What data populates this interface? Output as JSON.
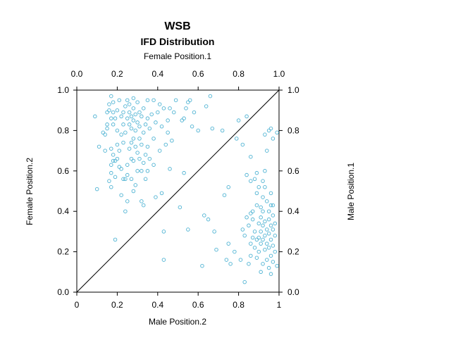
{
  "chart_data": {
    "type": "scatter",
    "title": "WSB",
    "subtitle": "IFD Distribution",
    "xlabel_top": "Female Position.1",
    "xlabel_bottom": "Male Position.2",
    "ylabel_left": "Female Position.2",
    "ylabel_right": "Male Position.1",
    "top_ticks": [
      "0.0",
      "0.2",
      "0.4",
      "0.6",
      "0.8",
      "1.0"
    ],
    "bottom_ticks": [
      "0",
      "0.2",
      "0.4",
      "0.6",
      "0.8",
      "1"
    ],
    "left_ticks": [
      "0.0",
      "0.2",
      "0.4",
      "0.6",
      "0.8",
      "1.0"
    ],
    "right_ticks": [
      "0.0",
      "0.2",
      "0.4",
      "0.6",
      "0.8",
      "1.0"
    ],
    "xlim": [
      0,
      1
    ],
    "ylim": [
      0,
      1
    ],
    "grid": false,
    "reference_line": "y = x",
    "point_color": "#4fb3d3",
    "line_color": "#000000",
    "points": [
      [
        0.09,
        0.87
      ],
      [
        0.1,
        0.51
      ],
      [
        0.11,
        0.72
      ],
      [
        0.13,
        0.79
      ],
      [
        0.14,
        0.7
      ],
      [
        0.14,
        0.78
      ],
      [
        0.15,
        0.81
      ],
      [
        0.15,
        0.83
      ],
      [
        0.15,
        0.89
      ],
      [
        0.16,
        0.9
      ],
      [
        0.16,
        0.93
      ],
      [
        0.16,
        0.55
      ],
      [
        0.17,
        0.52
      ],
      [
        0.17,
        0.59
      ],
      [
        0.17,
        0.63
      ],
      [
        0.17,
        0.71
      ],
      [
        0.17,
        0.86
      ],
      [
        0.17,
        0.97
      ],
      [
        0.18,
        0.65
      ],
      [
        0.18,
        0.83
      ],
      [
        0.18,
        0.89
      ],
      [
        0.18,
        0.94
      ],
      [
        0.18,
        0.68
      ],
      [
        0.19,
        0.26
      ],
      [
        0.19,
        0.57
      ],
      [
        0.19,
        0.65
      ],
      [
        0.19,
        0.86
      ],
      [
        0.2,
        0.66
      ],
      [
        0.2,
        0.73
      ],
      [
        0.2,
        0.8
      ],
      [
        0.2,
        0.9
      ],
      [
        0.21,
        0.62
      ],
      [
        0.21,
        0.7
      ],
      [
        0.21,
        0.95
      ],
      [
        0.22,
        0.48
      ],
      [
        0.22,
        0.61
      ],
      [
        0.22,
        0.78
      ],
      [
        0.22,
        0.87
      ],
      [
        0.23,
        0.56
      ],
      [
        0.23,
        0.74
      ],
      [
        0.23,
        0.83
      ],
      [
        0.23,
        0.89
      ],
      [
        0.24,
        0.4
      ],
      [
        0.24,
        0.56
      ],
      [
        0.24,
        0.79
      ],
      [
        0.24,
        0.92
      ],
      [
        0.25,
        0.45
      ],
      [
        0.25,
        0.58
      ],
      [
        0.25,
        0.63
      ],
      [
        0.25,
        0.86
      ],
      [
        0.25,
        0.95
      ],
      [
        0.26,
        0.71
      ],
      [
        0.26,
        0.83
      ],
      [
        0.26,
        0.89
      ],
      [
        0.26,
        0.93
      ],
      [
        0.27,
        0.56
      ],
      [
        0.27,
        0.66
      ],
      [
        0.27,
        0.74
      ],
      [
        0.27,
        0.81
      ],
      [
        0.27,
        0.87
      ],
      [
        0.28,
        0.5
      ],
      [
        0.28,
        0.65
      ],
      [
        0.28,
        0.76
      ],
      [
        0.28,
        0.85
      ],
      [
        0.28,
        0.91
      ],
      [
        0.28,
        0.96
      ],
      [
        0.29,
        0.53
      ],
      [
        0.29,
        0.72
      ],
      [
        0.29,
        0.8
      ],
      [
        0.29,
        0.88
      ],
      [
        0.3,
        0.6
      ],
      [
        0.3,
        0.69
      ],
      [
        0.3,
        0.84
      ],
      [
        0.3,
        0.94
      ],
      [
        0.31,
        0.66
      ],
      [
        0.31,
        0.76
      ],
      [
        0.31,
        0.82
      ],
      [
        0.31,
        0.89
      ],
      [
        0.32,
        0.45
      ],
      [
        0.32,
        0.6
      ],
      [
        0.32,
        0.73
      ],
      [
        0.32,
        0.87
      ],
      [
        0.33,
        0.43
      ],
      [
        0.33,
        0.64
      ],
      [
        0.33,
        0.79
      ],
      [
        0.33,
        0.91
      ],
      [
        0.34,
        0.56
      ],
      [
        0.34,
        0.68
      ],
      [
        0.34,
        0.83
      ],
      [
        0.35,
        0.6
      ],
      [
        0.35,
        0.72
      ],
      [
        0.35,
        0.86
      ],
      [
        0.35,
        0.95
      ],
      [
        0.36,
        0.66
      ],
      [
        0.36,
        0.81
      ],
      [
        0.37,
        0.88
      ],
      [
        0.38,
        0.63
      ],
      [
        0.38,
        0.76
      ],
      [
        0.38,
        0.95
      ],
      [
        0.39,
        0.47
      ],
      [
        0.39,
        0.84
      ],
      [
        0.4,
        0.89
      ],
      [
        0.41,
        0.7
      ],
      [
        0.41,
        0.93
      ],
      [
        0.42,
        0.49
      ],
      [
        0.42,
        0.82
      ],
      [
        0.43,
        0.16
      ],
      [
        0.43,
        0.3
      ],
      [
        0.43,
        0.91
      ],
      [
        0.44,
        0.73
      ],
      [
        0.45,
        0.79
      ],
      [
        0.45,
        0.85
      ],
      [
        0.46,
        0.61
      ],
      [
        0.46,
        0.91
      ],
      [
        0.47,
        0.75
      ],
      [
        0.48,
        0.89
      ],
      [
        0.49,
        0.95
      ],
      [
        0.51,
        0.42
      ],
      [
        0.52,
        0.85
      ],
      [
        0.53,
        0.59
      ],
      [
        0.53,
        0.86
      ],
      [
        0.54,
        0.91
      ],
      [
        0.55,
        0.31
      ],
      [
        0.55,
        0.94
      ],
      [
        0.56,
        0.95
      ],
      [
        0.57,
        0.82
      ],
      [
        0.58,
        0.89
      ],
      [
        0.6,
        0.8
      ],
      [
        0.62,
        0.13
      ],
      [
        0.63,
        0.38
      ],
      [
        0.64,
        0.92
      ],
      [
        0.65,
        0.36
      ],
      [
        0.66,
        0.97
      ],
      [
        0.67,
        0.81
      ],
      [
        0.68,
        0.3
      ],
      [
        0.69,
        0.21
      ],
      [
        0.72,
        0.8
      ],
      [
        0.73,
        0.48
      ],
      [
        0.74,
        0.16
      ],
      [
        0.75,
        0.24
      ],
      [
        0.75,
        0.52
      ],
      [
        0.76,
        0.14
      ],
      [
        0.78,
        0.2
      ],
      [
        0.79,
        0.76
      ],
      [
        0.8,
        0.85
      ],
      [
        0.81,
        0.16
      ],
      [
        0.82,
        0.31
      ],
      [
        0.82,
        0.73
      ],
      [
        0.83,
        0.05
      ],
      [
        0.83,
        0.28
      ],
      [
        0.84,
        0.37
      ],
      [
        0.84,
        0.58
      ],
      [
        0.84,
        0.87
      ],
      [
        0.85,
        0.14
      ],
      [
        0.85,
        0.33
      ],
      [
        0.86,
        0.18
      ],
      [
        0.86,
        0.24
      ],
      [
        0.86,
        0.39
      ],
      [
        0.86,
        0.55
      ],
      [
        0.86,
        0.67
      ],
      [
        0.87,
        0.27
      ],
      [
        0.87,
        0.36
      ],
      [
        0.87,
        0.4
      ],
      [
        0.88,
        0.22
      ],
      [
        0.88,
        0.3
      ],
      [
        0.88,
        0.56
      ],
      [
        0.89,
        0.17
      ],
      [
        0.89,
        0.26
      ],
      [
        0.89,
        0.43
      ],
      [
        0.89,
        0.49
      ],
      [
        0.89,
        0.59
      ],
      [
        0.9,
        0.2
      ],
      [
        0.9,
        0.27
      ],
      [
        0.9,
        0.34
      ],
      [
        0.9,
        0.52
      ],
      [
        0.91,
        0.1
      ],
      [
        0.91,
        0.24
      ],
      [
        0.91,
        0.3
      ],
      [
        0.91,
        0.37
      ],
      [
        0.91,
        0.42
      ],
      [
        0.92,
        0.14
      ],
      [
        0.92,
        0.26
      ],
      [
        0.92,
        0.33
      ],
      [
        0.92,
        0.4
      ],
      [
        0.92,
        0.47
      ],
      [
        0.92,
        0.55
      ],
      [
        0.93,
        0.21
      ],
      [
        0.93,
        0.28
      ],
      [
        0.93,
        0.35
      ],
      [
        0.93,
        0.52
      ],
      [
        0.93,
        0.6
      ],
      [
        0.93,
        0.78
      ],
      [
        0.94,
        0.16
      ],
      [
        0.94,
        0.24
      ],
      [
        0.94,
        0.31
      ],
      [
        0.94,
        0.45
      ],
      [
        0.94,
        0.7
      ],
      [
        0.95,
        0.12
      ],
      [
        0.95,
        0.22
      ],
      [
        0.95,
        0.29
      ],
      [
        0.95,
        0.36
      ],
      [
        0.95,
        0.4
      ],
      [
        0.95,
        0.8
      ],
      [
        0.96,
        0.09
      ],
      [
        0.96,
        0.18
      ],
      [
        0.96,
        0.26
      ],
      [
        0.96,
        0.33
      ],
      [
        0.96,
        0.43
      ],
      [
        0.96,
        0.49
      ],
      [
        0.96,
        0.81
      ],
      [
        0.97,
        0.15
      ],
      [
        0.97,
        0.23
      ],
      [
        0.97,
        0.31
      ],
      [
        0.97,
        0.38
      ],
      [
        0.97,
        0.43
      ],
      [
        0.97,
        0.76
      ],
      [
        0.98,
        0.2
      ],
      [
        0.98,
        0.34
      ],
      [
        0.98,
        0.28
      ],
      [
        0.99,
        0.13
      ],
      [
        0.99,
        0.79
      ]
    ]
  }
}
